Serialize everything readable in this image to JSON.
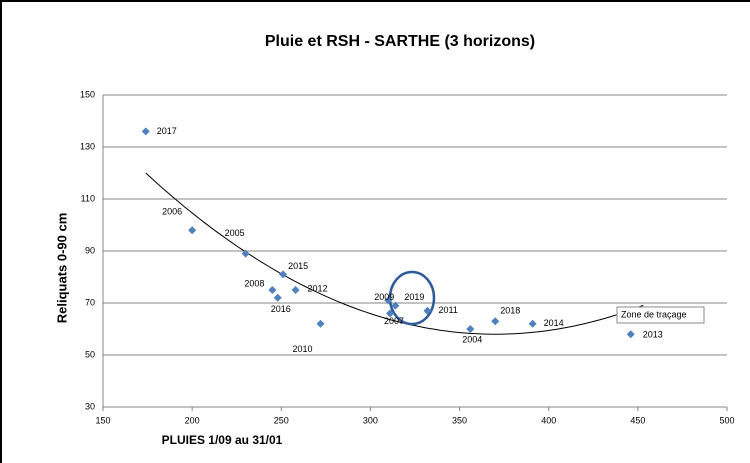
{
  "chart_data": {
    "type": "scatter",
    "title": "Pluie et RSH - SARTHE (3 horizons)",
    "xlabel": "PLUIES 1/09 au 31/01",
    "ylabel": "Reliquats 0-90 cm",
    "labels": [
      "2017",
      "2006",
      "2005",
      "2015",
      "2008",
      "2016",
      "2012",
      "2010",
      "2009",
      "2007",
      "2019",
      "2011",
      "2004",
      "2018",
      "2014",
      "2013"
    ],
    "x": [
      174,
      200,
      230,
      251,
      245,
      248,
      258,
      272,
      310,
      311,
      314,
      332,
      356,
      370,
      391,
      446
    ],
    "values": [
      136,
      98,
      89,
      81,
      75,
      72,
      75,
      62,
      71,
      66,
      69,
      67,
      60,
      63,
      62,
      58
    ],
    "color": "#4f81bd",
    "xlim": [
      150,
      500
    ],
    "xticks": [
      150,
      200,
      250,
      300,
      350,
      400,
      450,
      500
    ],
    "ylim": [
      30,
      150
    ],
    "yticks": [
      30,
      50,
      70,
      90,
      110,
      130,
      150
    ],
    "grid": true,
    "tooltip": "Zone de traçage"
  }
}
